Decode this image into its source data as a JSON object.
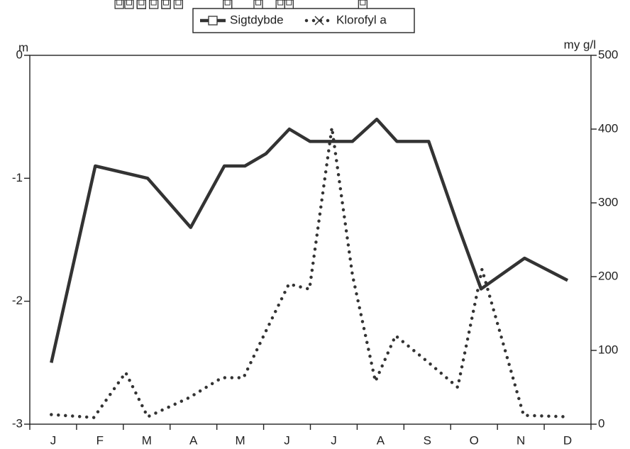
{
  "chart_data": {
    "type": "line",
    "categories": [
      "J",
      "F",
      "M",
      "A",
      "M",
      "J",
      "J",
      "A",
      "S",
      "O",
      "N",
      "D"
    ],
    "xlim": [
      0,
      12
    ],
    "ylabel": "m",
    "y2label": "my g/l",
    "ylim": [
      -3,
      0
    ],
    "yticks": [
      -3,
      -2,
      -1,
      0
    ],
    "y2lim": [
      0,
      500
    ],
    "y2ticks": [
      0,
      100,
      200,
      300,
      400,
      500
    ],
    "series": [
      {
        "name": "Sigtdybde",
        "color": "#333333",
        "style": "solid",
        "marker": "square",
        "x": [
          0.46,
          1.4,
          2.52,
          3.44,
          4.16,
          4.6,
          5.05,
          5.55,
          5.99,
          6.9,
          7.42,
          7.85,
          8.53,
          9.17,
          9.65,
          10.58,
          11.5
        ],
        "values": [
          -2.5,
          -0.9,
          -1.0,
          -1.4,
          -0.9,
          -0.9,
          -0.8,
          -0.6,
          -0.7,
          -0.7,
          -0.52,
          -0.7,
          -0.7,
          -1.4,
          -1.9,
          -1.65,
          -1.83
        ]
      },
      {
        "name": "Klorofyl a",
        "color": "#333333",
        "style": "dotted",
        "marker": "x",
        "axis": "y2",
        "x": [
          0.46,
          1.37,
          2.05,
          2.52,
          3.41,
          4.11,
          4.57,
          5.04,
          5.54,
          5.98,
          6.46,
          6.9,
          7.39,
          7.82,
          8.5,
          9.15,
          9.67,
          10.56,
          11.5
        ],
        "values": [
          13,
          9,
          70,
          10,
          36,
          63,
          63,
          125,
          190,
          183,
          402,
          202,
          58,
          120,
          85,
          50,
          210,
          12,
          10
        ]
      }
    ]
  }
}
